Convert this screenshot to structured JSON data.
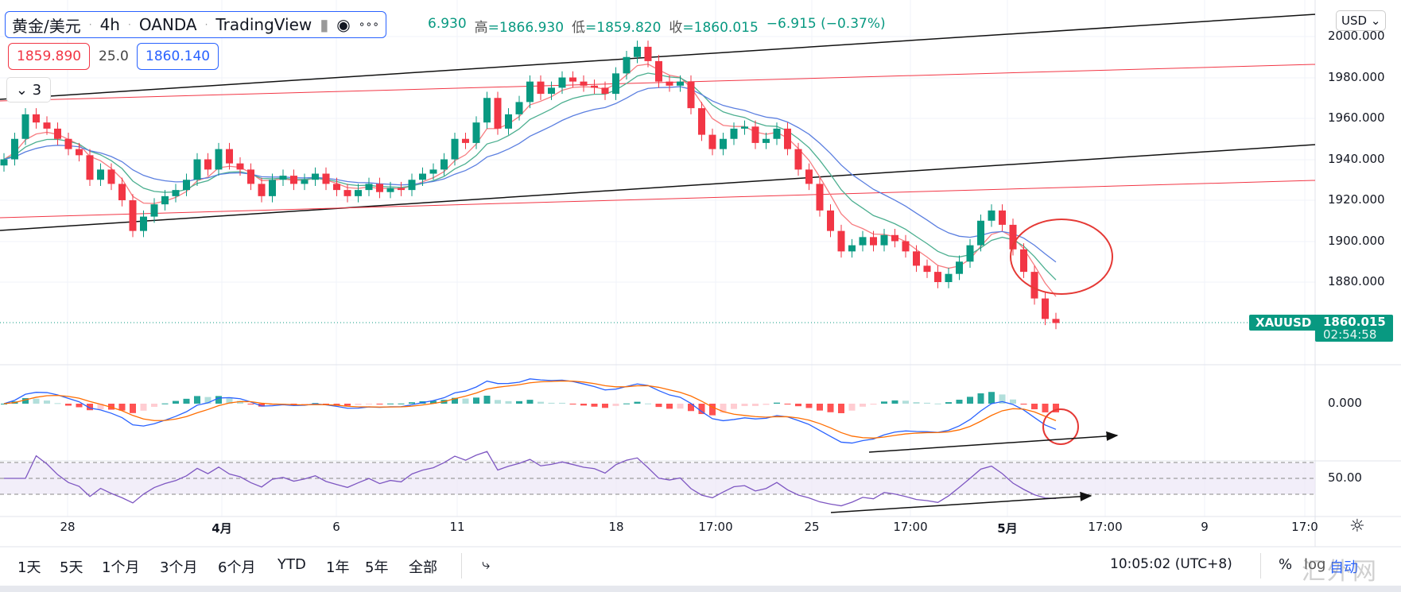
{
  "header": {
    "symbol": "黄金/美元",
    "interval": "4h",
    "broker": "OANDA",
    "source": "TradingView",
    "ohlc": {
      "open_partial": "6.930",
      "high_label": "高",
      "high": "1866.930",
      "low_label": "低",
      "low": "1859.820",
      "close_label": "收",
      "close": "1860.015",
      "change": "−6.915 (−0.37%)"
    },
    "bid": "1859.890",
    "spread": "25.0",
    "ask": "1860.140",
    "collapsed_count": "3"
  },
  "axis": {
    "currency": "USD",
    "price_ticks": [
      "2000.000",
      "1980.000",
      "1960.000",
      "1940.000",
      "1920.000",
      "1900.000",
      "1880.000"
    ],
    "macd_ticks": [
      "0.000"
    ],
    "rsi_ticks": [
      "50.00"
    ],
    "time_ticks": [
      "28",
      "4月",
      "6",
      "11",
      "18",
      "17:00",
      "25",
      "17:00",
      "5月",
      "17:00",
      "9",
      "17:0"
    ],
    "symbol_tag": "XAUUSD",
    "last_price": "1860.015",
    "countdown": "02:54:58"
  },
  "bottom": {
    "ranges": [
      "1天",
      "5天",
      "1个月",
      "3个月",
      "6个月",
      "YTD",
      "1年",
      "5年",
      "全部"
    ],
    "clock": "10:05:02 (UTC+8)",
    "percent": "%",
    "log": "log",
    "auto": "自动",
    "watermark": "汇外网"
  },
  "colors": {
    "up": "#089981",
    "down": "#f23645",
    "ma_fast": "#f77c80",
    "ma_mid": "#4caf90",
    "ma_slow": "#5b7fe0",
    "macd": "#2962ff",
    "signal": "#ff6d00",
    "rsi": "#7e57c2"
  },
  "chart_data": {
    "type": "candlestick",
    "ylim": [
      1865,
      2015
    ],
    "closes": [
      1940,
      1950,
      1962,
      1958,
      1955,
      1950,
      1945,
      1942,
      1930,
      1935,
      1928,
      1920,
      1905,
      1912,
      1918,
      1922,
      1925,
      1930,
      1940,
      1935,
      1945,
      1938,
      1935,
      1928,
      1922,
      1930,
      1932,
      1928,
      1930,
      1933,
      1928,
      1925,
      1922,
      1925,
      1928,
      1924,
      1926,
      1925,
      1930,
      1933,
      1935,
      1940,
      1950,
      1948,
      1958,
      1970,
      1955,
      1962,
      1968,
      1978,
      1972,
      1975,
      1980,
      1978,
      1976,
      1975,
      1972,
      1982,
      1990,
      1995,
      1988,
      1978,
      1976,
      1978,
      1965,
      1952,
      1945,
      1950,
      1955,
      1956,
      1948,
      1950,
      1955,
      1945,
      1935,
      1928,
      1915,
      1905,
      1895,
      1898,
      1902,
      1898,
      1903,
      1900,
      1895,
      1888,
      1885,
      1880,
      1884,
      1890,
      1898,
      1910,
      1915,
      1908,
      1896,
      1885,
      1872,
      1862,
      1860
    ]
  }
}
